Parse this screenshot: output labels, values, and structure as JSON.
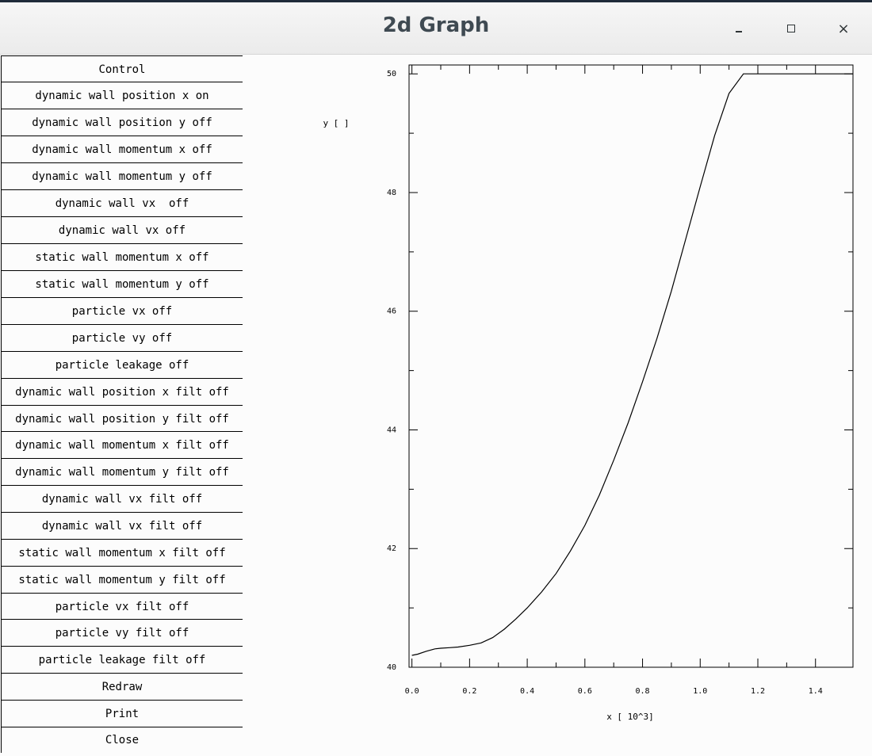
{
  "window": {
    "title": "2d Graph",
    "minimize_label": "_",
    "close_label": "×"
  },
  "controls": [
    "Control",
    "dynamic wall position x on",
    "dynamic wall position y off",
    "dynamic wall momentum x off",
    "dynamic wall momentum y off",
    "dynamic wall vx  off",
    "dynamic wall vx off",
    "static wall momentum x off",
    "static wall momentum y off",
    "particle vx off",
    "particle vy off",
    "particle leakage off",
    "dynamic wall position x filt off",
    "dynamic wall position y filt off",
    "dynamic wall momentum x filt off",
    "dynamic wall momentum y filt off",
    "dynamic wall vx filt off",
    "dynamic wall vx filt off",
    "static wall momentum x filt off",
    "static wall momentum y filt off",
    "particle vx filt off",
    "particle vy filt off",
    "particle leakage filt off",
    "Redraw",
    "Print",
    "Close"
  ],
  "chart_data": {
    "type": "line",
    "title": "",
    "xlabel": "x [ 10^3]",
    "ylabel": "y [ ]",
    "xlim": [
      -0.01,
      1.53
    ],
    "ylim": [
      40,
      50.15
    ],
    "x_ticks": [
      "0.0",
      "0.2",
      "0.4",
      "0.6",
      "0.8",
      "1.0",
      "1.2",
      "1.4"
    ],
    "y_ticks": [
      "40",
      "42",
      "44",
      "46",
      "48",
      "50"
    ],
    "grid": false,
    "series": [
      {
        "x": [
          0.0,
          0.02,
          0.05,
          0.08,
          0.1,
          0.13,
          0.16,
          0.2,
          0.24,
          0.28,
          0.32,
          0.36,
          0.4,
          0.45,
          0.5,
          0.55,
          0.6,
          0.65,
          0.7,
          0.75,
          0.8,
          0.85,
          0.9,
          0.95,
          1.0,
          1.05,
          1.1,
          1.15,
          1.17,
          1.25,
          1.35,
          1.45,
          1.53
        ],
        "values": [
          40.2,
          40.22,
          40.27,
          40.31,
          40.32,
          40.33,
          40.34,
          40.37,
          40.41,
          40.5,
          40.64,
          40.81,
          41.0,
          41.27,
          41.58,
          41.96,
          42.39,
          42.9,
          43.49,
          44.12,
          44.81,
          45.54,
          46.34,
          47.22,
          48.1,
          48.96,
          49.67,
          50.0,
          50.0,
          50.0,
          50.0,
          50.0,
          50.0
        ]
      }
    ]
  }
}
